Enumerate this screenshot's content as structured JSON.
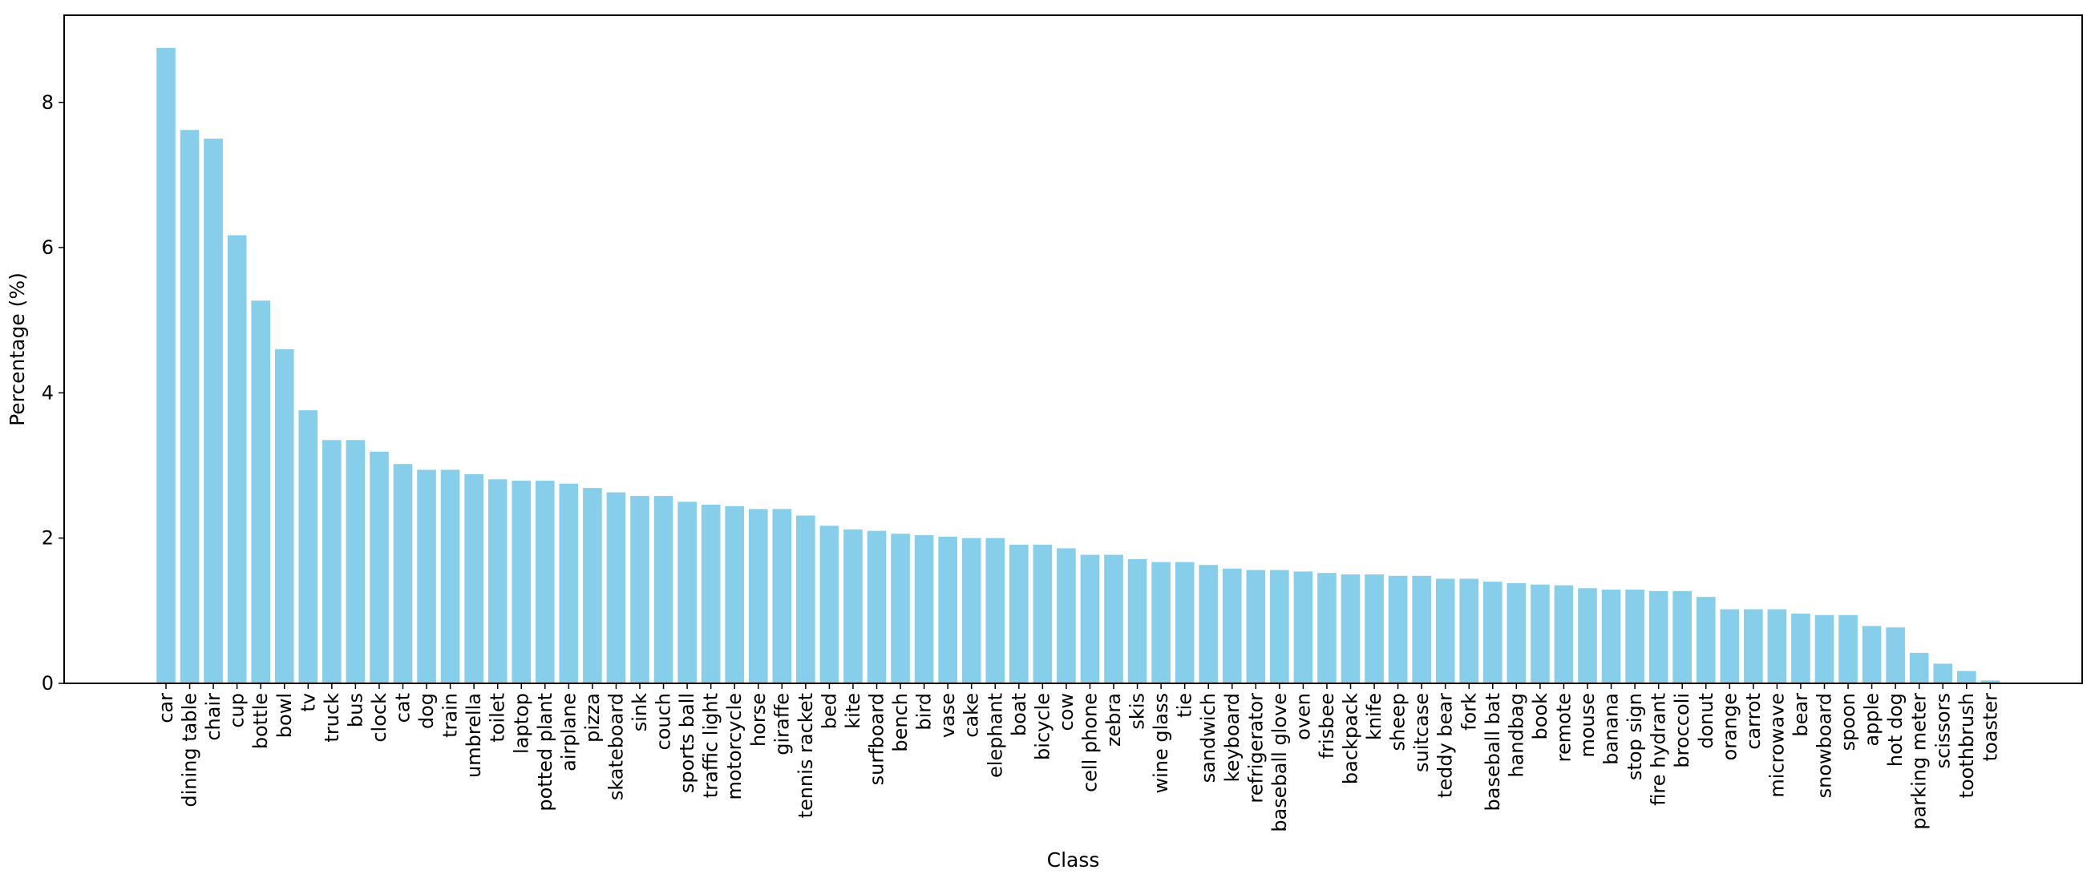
{
  "chart_data": {
    "type": "bar",
    "title": "",
    "xlabel": "Class",
    "ylabel": "Percentage (%)",
    "ylim": [
      0,
      9.2
    ],
    "yticks": [
      0,
      2,
      4,
      6,
      8
    ],
    "grid": false,
    "legend": "none",
    "bar_color": "#87ceeb",
    "categories": [
      "car",
      "dining table",
      "chair",
      "cup",
      "bottle",
      "bowl",
      "tv",
      "truck",
      "bus",
      "clock",
      "cat",
      "dog",
      "train",
      "umbrella",
      "toilet",
      "laptop",
      "potted plant",
      "airplane",
      "pizza",
      "skateboard",
      "sink",
      "couch",
      "sports ball",
      "traffic light",
      "motorcycle",
      "horse",
      "giraffe",
      "tennis racket",
      "bed",
      "kite",
      "surfboard",
      "bench",
      "bird",
      "vase",
      "cake",
      "elephant",
      "boat",
      "bicycle",
      "cow",
      "cell phone",
      "zebra",
      "skis",
      "wine glass",
      "tie",
      "sandwich",
      "keyboard",
      "refrigerator",
      "baseball glove",
      "oven",
      "frisbee",
      "backpack",
      "knife",
      "sheep",
      "suitcase",
      "teddy bear",
      "fork",
      "baseball bat",
      "handbag",
      "book",
      "remote",
      "mouse",
      "banana",
      "stop sign",
      "fire hydrant",
      "broccoli",
      "donut",
      "orange",
      "carrot",
      "microwave",
      "bear",
      "snowboard",
      "spoon",
      "apple",
      "hot dog",
      "parking meter",
      "scissors",
      "toothbrush",
      "toaster"
    ],
    "values": [
      8.75,
      7.62,
      7.5,
      6.17,
      5.27,
      4.6,
      3.76,
      3.35,
      3.35,
      3.19,
      3.02,
      2.94,
      2.94,
      2.88,
      2.81,
      2.79,
      2.79,
      2.75,
      2.69,
      2.63,
      2.58,
      2.58,
      2.5,
      2.46,
      2.44,
      2.4,
      2.4,
      2.31,
      2.17,
      2.12,
      2.1,
      2.06,
      2.04,
      2.02,
      2.0,
      2.0,
      1.91,
      1.91,
      1.86,
      1.77,
      1.77,
      1.71,
      1.67,
      1.67,
      1.63,
      1.58,
      1.56,
      1.56,
      1.54,
      1.52,
      1.5,
      1.5,
      1.48,
      1.48,
      1.44,
      1.44,
      1.4,
      1.38,
      1.36,
      1.35,
      1.31,
      1.29,
      1.29,
      1.27,
      1.27,
      1.19,
      1.02,
      1.02,
      1.02,
      0.96,
      0.94,
      0.94,
      0.79,
      0.77,
      0.42,
      0.27,
      0.17,
      0.04
    ]
  }
}
